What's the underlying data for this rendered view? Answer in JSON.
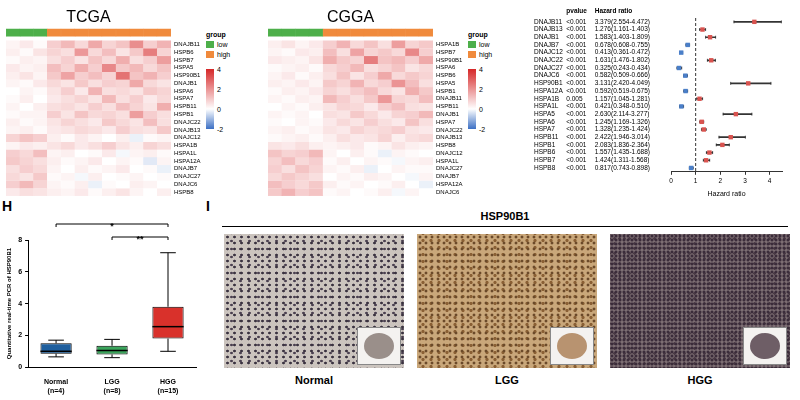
{
  "chart_data": [
    {
      "type": "heatmap",
      "title": "TCGA",
      "rows": [
        "DNAJB11",
        "HSPB6",
        "HSPB7",
        "HSPA5",
        "HSP90B1",
        "DNAJB1",
        "HSPA6",
        "HSPA7",
        "HSPB11",
        "HSPB1",
        "DNAJC22",
        "DNAJB13",
        "DNAJC12",
        "HSPA1B",
        "HSPA1L",
        "HSPA12A",
        "DNAJB7",
        "DNAJC27",
        "DNAJC6",
        "HSPB8"
      ],
      "cells": [
        [
          0.2,
          0.4,
          0.1,
          0.9,
          1.3,
          0.7,
          1.6,
          0.8,
          1.1,
          2.1,
          0.9,
          1.4
        ],
        [
          0.3,
          0.1,
          0.5,
          0.8,
          0.6,
          1.9,
          0.7,
          1.2,
          0.5,
          1.0,
          2.4,
          0.8
        ],
        [
          0.1,
          0.3,
          0.2,
          0.6,
          0.9,
          0.5,
          1.1,
          0.7,
          1.5,
          0.6,
          0.9,
          1.8
        ],
        [
          0.4,
          0.2,
          0.3,
          1.2,
          0.8,
          1.5,
          0.9,
          2.2,
          1.0,
          1.3,
          0.7,
          1.1
        ],
        [
          0.3,
          0.5,
          0.2,
          1.0,
          1.7,
          0.9,
          1.2,
          0.8,
          2.6,
          1.1,
          1.4,
          0.9
        ],
        [
          0.2,
          0.1,
          0.4,
          0.7,
          0.5,
          1.0,
          0.6,
          0.9,
          0.8,
          1.6,
          0.7,
          0.5
        ],
        [
          0.0,
          0.2,
          0.1,
          0.5,
          0.9,
          0.4,
          1.4,
          0.6,
          0.7,
          0.5,
          1.0,
          0.8
        ],
        [
          0.1,
          0.3,
          0.0,
          0.4,
          0.6,
          0.8,
          0.5,
          1.3,
          0.6,
          0.9,
          0.4,
          0.7
        ],
        [
          0.2,
          0.0,
          0.3,
          0.6,
          0.7,
          0.5,
          0.9,
          0.6,
          1.2,
          0.8,
          0.5,
          1.5
        ],
        [
          0.1,
          0.2,
          0.2,
          0.9,
          0.5,
          1.1,
          0.7,
          0.8,
          0.6,
          1.8,
          0.9,
          0.6
        ],
        [
          0.3,
          0.1,
          0.2,
          0.5,
          0.8,
          0.6,
          0.4,
          1.0,
          0.7,
          0.5,
          1.2,
          0.6
        ],
        [
          0.2,
          0.3,
          0.1,
          0.4,
          0.5,
          0.7,
          0.6,
          0.4,
          0.9,
          0.6,
          0.5,
          1.0
        ],
        [
          0.8,
          1.1,
          0.9,
          0.3,
          0.1,
          0.4,
          0.2,
          0.0,
          0.3,
          -0.2,
          0.1,
          0.2
        ],
        [
          0.2,
          0.4,
          0.3,
          0.5,
          0.7,
          0.4,
          0.6,
          0.9,
          0.5,
          0.3,
          0.8,
          0.6
        ],
        [
          0.9,
          0.7,
          1.2,
          0.2,
          0.3,
          0.0,
          0.1,
          0.4,
          -0.1,
          0.2,
          0.3,
          0.1
        ],
        [
          1.0,
          0.8,
          0.6,
          0.3,
          0.1,
          0.2,
          0.4,
          0.0,
          0.2,
          0.1,
          -0.3,
          0.2
        ],
        [
          0.6,
          0.9,
          0.7,
          0.2,
          0.0,
          0.3,
          0.1,
          0.2,
          0.4,
          0.0,
          0.1,
          -0.2
        ],
        [
          0.7,
          0.5,
          1.0,
          0.1,
          0.2,
          -0.1,
          0.3,
          0.0,
          0.1,
          0.2,
          0.0,
          0.1
        ],
        [
          0.9,
          1.3,
          0.8,
          0.2,
          0.1,
          0.3,
          -0.2,
          0.1,
          0.0,
          0.3,
          0.2,
          0.0
        ],
        [
          0.4,
          0.6,
          0.5,
          0.3,
          0.2,
          0.4,
          0.1,
          0.3,
          0.5,
          0.2,
          0.0,
          0.3
        ]
      ],
      "groups": [
        "low",
        "low",
        "low",
        "high",
        "high",
        "high",
        "high",
        "high",
        "high",
        "high",
        "high",
        "high"
      ],
      "group_legend": {
        "title": "group",
        "names": [
          "low",
          "high"
        ],
        "colors": [
          "#4daf4a",
          "#f08a3c"
        ]
      },
      "colorbar": {
        "range": [
          -2,
          4
        ],
        "ticks": [
          -2,
          0,
          2,
          4
        ],
        "colors": [
          "#3b6fc4",
          "#ffffff",
          "#d62728"
        ]
      }
    },
    {
      "type": "heatmap",
      "title": "CGGA",
      "rows": [
        "HSPA1B",
        "HSPB7",
        "HSP90B1",
        "HSPA6",
        "HSPB6",
        "HSPA5",
        "HSPB1",
        "DNAJB11",
        "HSPB11",
        "DNAJB1",
        "HSPA7",
        "DNAJC22",
        "DNAJB13",
        "HSPB8",
        "DNAJC12",
        "HSPA1L",
        "DNAJC27",
        "DNAJB7",
        "HSPA12A",
        "DNAJC6"
      ],
      "cells": [
        [
          0.3,
          0.5,
          0.2,
          0.4,
          0.9,
          1.4,
          0.7,
          1.1,
          0.6,
          1.8,
          0.8,
          1.0
        ],
        [
          0.2,
          0.1,
          0.4,
          0.3,
          1.2,
          0.6,
          1.7,
          0.8,
          1.0,
          0.7,
          2.2,
          0.9
        ],
        [
          0.4,
          0.3,
          0.2,
          0.5,
          1.5,
          1.0,
          0.8,
          2.4,
          1.1,
          1.3,
          0.9,
          1.6
        ],
        [
          0.1,
          0.2,
          0.3,
          0.1,
          0.7,
          0.9,
          1.3,
          0.6,
          0.8,
          1.1,
          0.5,
          0.7
        ],
        [
          0.2,
          0.4,
          0.1,
          0.3,
          0.6,
          1.1,
          0.5,
          0.9,
          1.6,
          0.7,
          1.0,
          0.8
        ],
        [
          0.3,
          0.2,
          0.4,
          0.2,
          1.0,
          0.8,
          1.4,
          0.7,
          0.9,
          2.0,
          1.2,
          0.6
        ],
        [
          0.1,
          0.3,
          0.2,
          0.4,
          0.8,
          0.6,
          0.9,
          1.2,
          0.7,
          0.5,
          1.5,
          1.0
        ],
        [
          0.2,
          0.1,
          0.3,
          0.2,
          1.3,
          0.9,
          0.6,
          1.0,
          1.9,
          0.8,
          0.7,
          1.2
        ],
        [
          0.0,
          0.2,
          0.1,
          0.3,
          0.5,
          0.8,
          0.7,
          0.4,
          0.9,
          1.2,
          0.6,
          0.5
        ],
        [
          0.2,
          0.1,
          0.2,
          0.0,
          0.6,
          0.5,
          1.0,
          0.7,
          0.4,
          0.8,
          0.9,
          1.3
        ],
        [
          0.1,
          0.0,
          0.2,
          0.1,
          0.4,
          0.7,
          0.5,
          0.9,
          0.6,
          0.4,
          1.1,
          0.6
        ],
        [
          0.2,
          0.3,
          0.1,
          0.2,
          0.5,
          0.4,
          0.8,
          0.6,
          0.7,
          0.9,
          0.5,
          0.4
        ],
        [
          0.1,
          0.2,
          0.3,
          0.1,
          0.3,
          0.6,
          0.4,
          0.5,
          0.8,
          0.3,
          0.6,
          0.7
        ],
        [
          0.5,
          0.4,
          0.6,
          0.3,
          0.2,
          0.3,
          0.4,
          0.1,
          0.2,
          0.5,
          0.3,
          0.2
        ],
        [
          1.1,
          0.8,
          0.9,
          1.3,
          0.2,
          0.0,
          0.3,
          0.1,
          -0.2,
          0.2,
          0.1,
          0.0
        ],
        [
          0.8,
          1.2,
          0.7,
          0.9,
          0.1,
          0.3,
          0.0,
          0.2,
          0.1,
          -0.1,
          0.2,
          0.3
        ],
        [
          0.9,
          0.6,
          1.1,
          0.8,
          0.2,
          0.1,
          0.3,
          -0.2,
          0.0,
          0.2,
          0.1,
          0.1
        ],
        [
          0.7,
          1.0,
          0.8,
          0.6,
          0.0,
          0.2,
          0.1,
          0.3,
          0.2,
          0.0,
          -0.1,
          0.2
        ],
        [
          1.2,
          0.9,
          0.7,
          1.0,
          0.3,
          0.1,
          0.2,
          0.0,
          0.1,
          0.3,
          0.0,
          -0.2
        ],
        [
          1.0,
          1.4,
          0.9,
          1.1,
          0.1,
          0.2,
          0.0,
          0.1,
          0.3,
          -0.1,
          0.2,
          0.0
        ]
      ],
      "groups": [
        "low",
        "low",
        "low",
        "low",
        "high",
        "high",
        "high",
        "high",
        "high",
        "high",
        "high",
        "high"
      ],
      "group_legend": {
        "title": "group",
        "names": [
          "low",
          "high"
        ],
        "colors": [
          "#4daf4a",
          "#f08a3c"
        ]
      },
      "colorbar": {
        "range": [
          -2,
          4
        ],
        "ticks": [
          -2,
          0,
          2,
          4
        ],
        "colors": [
          "#3b6fc4",
          "#ffffff",
          "#d62728"
        ]
      }
    },
    {
      "type": "forest",
      "categories": [
        "DNAJB11",
        "DNAJB13",
        "DNAJB1",
        "DNAJB7",
        "DNAJC12",
        "DNAJC22",
        "DNAJC27",
        "DNAJC6",
        "HSP90B1",
        "HSPA12A",
        "HSPA1B",
        "HSPA1L",
        "HSPA5",
        "HSPA6",
        "HSPA7",
        "HSPB11",
        "HSPB1",
        "HSPB6",
        "HSPB7",
        "HSPB8"
      ],
      "column_headers": [
        "pvalue",
        "Hazard ratio"
      ],
      "pvalues": [
        "<0.001",
        "<0.001",
        "<0.001",
        "<0.001",
        "<0.001",
        "<0.001",
        "<0.001",
        "<0.001",
        "<0.001",
        "<0.001",
        "0.005",
        "<0.001",
        "<0.001",
        "<0.001",
        "<0.001",
        "<0.001",
        "<0.001",
        "<0.001",
        "<0.001",
        "<0.001"
      ],
      "values": [
        3.379,
        1.276,
        1.583,
        0.678,
        0.413,
        1.631,
        0.325,
        0.582,
        3.131,
        0.592,
        1.157,
        0.421,
        2.63,
        1.245,
        1.328,
        2.422,
        2.083,
        1.557,
        1.424,
        0.817
      ],
      "ci_low": [
        2.554,
        1.161,
        1.403,
        0.608,
        0.361,
        1.476,
        0.243,
        0.509,
        2.42,
        0.519,
        1.045,
        0.348,
        2.114,
        1.169,
        1.235,
        1.946,
        1.836,
        1.435,
        1.311,
        0.743
      ],
      "ci_high": [
        4.472,
        1.403,
        1.809,
        0.755,
        0.472,
        1.802,
        0.434,
        0.666,
        4.049,
        0.675,
        1.281,
        0.51,
        3.277,
        1.326,
        1.424,
        3.014,
        2.364,
        1.688,
        1.568,
        0.898
      ],
      "value_labels": [
        "3.379(2.554-4.472)",
        "1.276(1.161-1.403)",
        "1.583(1.403-1.809)",
        "0.678(0.608-0.755)",
        "0.413(0.361-0.472)",
        "1.631(1.476-1.802)",
        "0.325(0.243-0.434)",
        "0.582(0.509-0.666)",
        "3.131(2.420-4.049)",
        "0.592(0.519-0.675)",
        "1.157(1.045-1.281)",
        "0.421(0.348-0.510)",
        "2.630(2.114-3.277)",
        "1.245(1.169-1.326)",
        "1.328(1.235-1.424)",
        "2.422(1.946-3.014)",
        "2.083(1.836-2.364)",
        "1.557(1.435-1.688)",
        "1.424(1.311-1.568)",
        "0.817(0.743-0.898)"
      ],
      "colors": [
        "#d9534f",
        "#d9534f",
        "#d9534f",
        "#4a7fc9",
        "#4a7fc9",
        "#d9534f",
        "#4a7fc9",
        "#4a7fc9",
        "#d9534f",
        "#4a7fc9",
        "#d9534f",
        "#4a7fc9",
        "#d9534f",
        "#d9534f",
        "#d9534f",
        "#d9534f",
        "#d9534f",
        "#d9534f",
        "#d9534f",
        "#4a7fc9"
      ],
      "xlim": [
        0,
        4.5
      ],
      "xticks": [
        0,
        1,
        2,
        3,
        4
      ],
      "xlabel": "Hazard ratio",
      "ref_line": 1
    },
    {
      "type": "box",
      "panel": "H",
      "categories": [
        "Normal (n=4)",
        "LGG (n=8)",
        "HGG (n=15)"
      ],
      "min": [
        0.65,
        0.6,
        1.0
      ],
      "q1": [
        0.85,
        0.8,
        1.8
      ],
      "median": [
        1.0,
        1.05,
        2.55
      ],
      "q3": [
        1.5,
        1.35,
        3.8
      ],
      "max": [
        1.7,
        1.75,
        7.2
      ],
      "colors": [
        "#1f5f9e",
        "#3ba55c",
        "#d9312b"
      ],
      "ylim": [
        0,
        8
      ],
      "yticks": [
        0,
        2,
        4,
        6,
        8
      ],
      "ylabel": "Quantitative real-time PCR of HSP90B1",
      "annotations": [
        {
          "from": "Normal (n=4)",
          "to": "HGG (n=15)",
          "text": "*"
        },
        {
          "from": "LGG (n=8)",
          "to": "HGG (n=15)",
          "text": "**"
        }
      ]
    }
  ],
  "panel_I": {
    "panel": "I",
    "title": "HSP90B1",
    "images": [
      "Normal",
      "LGG",
      "HGG"
    ]
  }
}
